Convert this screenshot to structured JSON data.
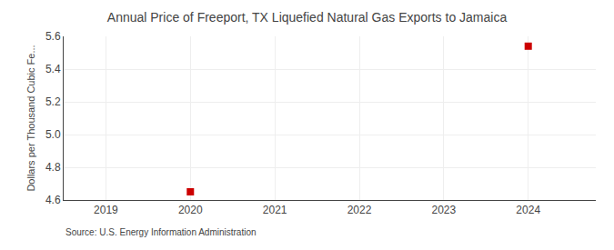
{
  "chart_data": {
    "type": "scatter",
    "title": "Annual Price of Freeport, TX Liquefied Natural Gas Exports to Jamaica",
    "ylabel": "Dollars per Thousand Cubic Fe...",
    "annotations": [
      "Source: U.S. Energy Information Administration"
    ],
    "x": [
      2020,
      2024
    ],
    "values": [
      4.65,
      5.54
    ],
    "color": "#cc0000",
    "marker": "square",
    "xlim": [
      2018.5,
      2024.8
    ],
    "ylim": [
      4.6,
      5.6
    ],
    "xticks": [
      2019,
      2020,
      2021,
      2022,
      2023,
      2024
    ],
    "yticks": [
      4.6,
      4.8,
      {
        "value": 5,
        "label": "5.0"
      },
      5.2,
      5.4,
      {
        "value": 5.6,
        "label": "5.6"
      }
    ],
    "grid": true
  }
}
